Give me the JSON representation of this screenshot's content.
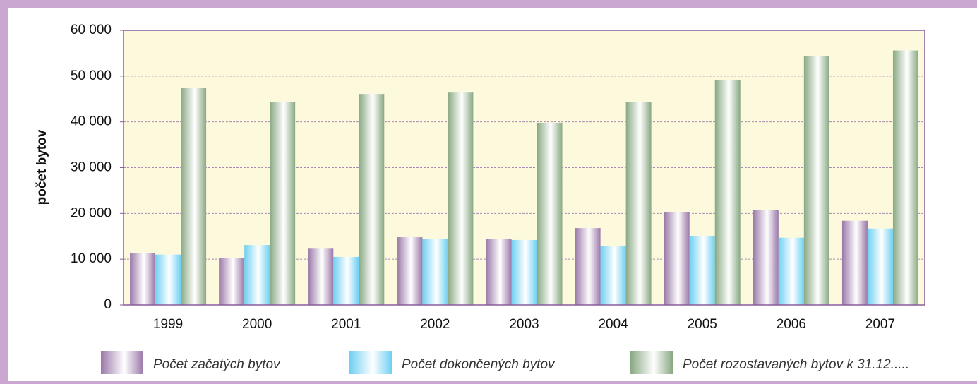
{
  "chart_data": {
    "type": "bar",
    "y_label": "počet bytov",
    "categories": [
      "1999",
      "2000",
      "2001",
      "2002",
      "2003",
      "2004",
      "2005",
      "2006",
      "2007"
    ],
    "series": [
      {
        "name": "Počet začatých bytov",
        "color": "#9a78a8",
        "values": [
          11400,
          10200,
          12300,
          14800,
          14400,
          16800,
          20200,
          20800,
          18400
        ]
      },
      {
        "name": "Počet dokončených bytov",
        "color": "#6fd0f2",
        "values": [
          11000,
          13100,
          10500,
          14500,
          14200,
          12800,
          15100,
          14700,
          16700
        ]
      },
      {
        "name": "Počet rozostavaných bytov k 31.12.....",
        "color": "#88a882",
        "values": [
          47500,
          44400,
          46100,
          46400,
          39800,
          44300,
          49100,
          54300,
          55600
        ]
      }
    ],
    "ylim": [
      0,
      60000
    ],
    "yticks": [
      0,
      {
        "value": 10000,
        "label": "10 000"
      },
      {
        "value": 20000,
        "label": "20 000"
      },
      {
        "value": 30000,
        "label": "30 000"
      },
      {
        "value": 40000,
        "label": "40 000"
      },
      {
        "value": 50000,
        "label": "50 000"
      },
      {
        "value": 60000,
        "label": "60 000"
      }
    ],
    "grid": true
  }
}
